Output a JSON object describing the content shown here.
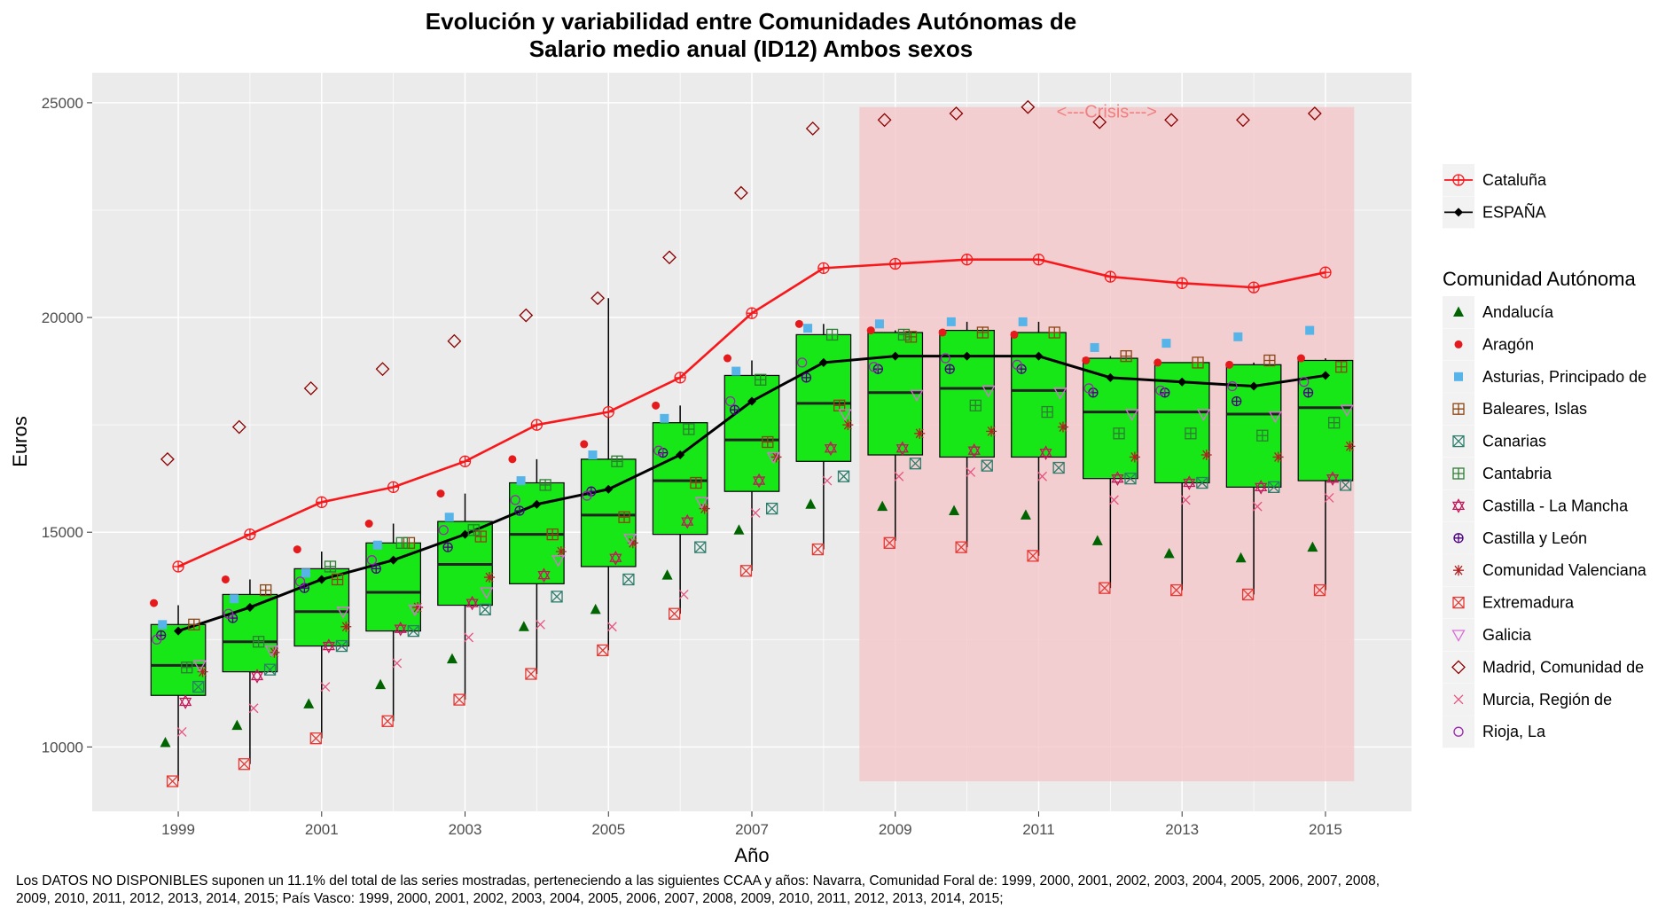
{
  "chart_data": {
    "type": "boxplot",
    "title_line1": "Evolución y variabilidad entre Comunidades Autónomas de",
    "title_line2": "Salario medio anual (ID12) Ambos sexos",
    "xlabel": "Año",
    "ylabel": "Euros",
    "xlim": [
      1997.8,
      2016.2
    ],
    "ylim": [
      8500,
      25700
    ],
    "x_ticks": [
      1999,
      2001,
      2003,
      2005,
      2007,
      2009,
      2011,
      2013,
      2015
    ],
    "x_tick_labels": [
      "1999",
      "2001",
      "2003",
      "2005",
      "2007",
      "2009",
      "2011",
      "2013",
      "2015"
    ],
    "y_ticks": [
      10000,
      15000,
      20000,
      25000
    ],
    "y_tick_labels": [
      "10000",
      "15000",
      "20000",
      "25000"
    ],
    "grid": true,
    "crisis_band": {
      "label": "<---Crisis--->",
      "x_from": 2008.5,
      "x_to": 2015.4,
      "y_from": 9200,
      "y_to": 24900,
      "color": "#f4c7c9"
    },
    "box_color": "#17e617",
    "years": [
      1999,
      2000,
      2001,
      2002,
      2003,
      2004,
      2005,
      2006,
      2007,
      2008,
      2009,
      2010,
      2011,
      2012,
      2013,
      2014,
      2015
    ],
    "boxes": [
      {
        "year": 1999,
        "min": 9200,
        "q1": 11200,
        "median": 11900,
        "q3": 12850,
        "max": 13300
      },
      {
        "year": 2000,
        "min": 9600,
        "q1": 11750,
        "median": 12450,
        "q3": 13550,
        "max": 13900
      },
      {
        "year": 2001,
        "min": 10200,
        "q1": 12350,
        "median": 13150,
        "q3": 14150,
        "max": 14550
      },
      {
        "year": 2002,
        "min": 10600,
        "q1": 12700,
        "median": 13600,
        "q3": 14750,
        "max": 15200
      },
      {
        "year": 2003,
        "min": 11100,
        "q1": 13300,
        "median": 14250,
        "q3": 15250,
        "max": 15900
      },
      {
        "year": 2004,
        "min": 11700,
        "q1": 13800,
        "median": 14950,
        "q3": 16150,
        "max": 16700
      },
      {
        "year": 2005,
        "min": 12250,
        "q1": 14200,
        "median": 15400,
        "q3": 16700,
        "max": 20450
      },
      {
        "year": 2006,
        "min": 13100,
        "q1": 14950,
        "median": 16200,
        "q3": 17550,
        "max": 17950
      },
      {
        "year": 2007,
        "min": 14100,
        "q1": 15950,
        "median": 17150,
        "q3": 18650,
        "max": 19000
      },
      {
        "year": 2008,
        "min": 14600,
        "q1": 16650,
        "median": 18000,
        "q3": 19600,
        "max": 19850
      },
      {
        "year": 2009,
        "min": 14800,
        "q1": 16800,
        "median": 18250,
        "q3": 19650,
        "max": 19700
      },
      {
        "year": 2010,
        "min": 14650,
        "q1": 16750,
        "median": 18350,
        "q3": 19700,
        "max": 19900
      },
      {
        "year": 2011,
        "min": 14450,
        "q1": 16750,
        "median": 18300,
        "q3": 19650,
        "max": 19900
      },
      {
        "year": 2012,
        "min": 13700,
        "q1": 16250,
        "median": 17800,
        "q3": 19050,
        "max": 19100
      },
      {
        "year": 2013,
        "min": 13650,
        "q1": 16150,
        "median": 17800,
        "q3": 18950,
        "max": 18950
      },
      {
        "year": 2014,
        "min": 13550,
        "q1": 16050,
        "median": 17750,
        "q3": 18900,
        "max": 18950
      },
      {
        "year": 2015,
        "min": 13650,
        "q1": 16200,
        "median": 17900,
        "q3": 19000,
        "max": 19050
      }
    ],
    "series": [
      {
        "name": "Cataluña",
        "color": "#f8171b",
        "shape": "circle-cross",
        "line": true,
        "values": [
          14200,
          14950,
          15700,
          16050,
          16650,
          17500,
          17800,
          18600,
          20100,
          21150,
          21250,
          21350,
          21350,
          20950,
          20800,
          20700,
          21050
        ]
      },
      {
        "name": "ESPAÑA",
        "color": "#000000",
        "shape": "diamond-filled",
        "line": true,
        "values": [
          12700,
          13250,
          13900,
          14350,
          14950,
          15650,
          16000,
          16800,
          18050,
          18950,
          19100,
          19100,
          19100,
          18600,
          18500,
          18400,
          18650
        ]
      },
      {
        "name": "Andalucía",
        "color": "#006400",
        "shape": "triangle-filled",
        "values": [
          10100,
          10500,
          11000,
          11450,
          12050,
          12800,
          13200,
          14000,
          15050,
          15650,
          15600,
          15500,
          15400,
          14800,
          14500,
          14400,
          14650
        ]
      },
      {
        "name": "Aragón",
        "color": "#e41a1c",
        "shape": "circle-filled",
        "values": [
          13350,
          13900,
          14600,
          15200,
          15900,
          16700,
          17050,
          17950,
          19050,
          19850,
          19700,
          19650,
          19600,
          19000,
          18950,
          18900,
          19050
        ]
      },
      {
        "name": "Asturias, Principado de",
        "color": "#56b4e9",
        "shape": "square-filled",
        "values": [
          12850,
          13450,
          14050,
          14700,
          15350,
          16200,
          16800,
          17650,
          18750,
          19750,
          19850,
          19900,
          19900,
          19300,
          19400,
          19550,
          19700
        ]
      },
      {
        "name": "Baleares, Islas",
        "color": "#8b4513",
        "shape": "square-plus",
        "values": [
          12850,
          13650,
          13900,
          14750,
          14900,
          14950,
          15350,
          16150,
          17100,
          17950,
          19550,
          19650,
          19650,
          19100,
          18950,
          19000,
          18850
        ]
      },
      {
        "name": "Canarias",
        "color": "#2e7d6b",
        "shape": "square-x",
        "values": [
          11400,
          11800,
          12350,
          12700,
          13200,
          13500,
          13900,
          14650,
          15550,
          16300,
          16600,
          16550,
          16500,
          16250,
          16150,
          16050,
          16100
        ]
      },
      {
        "name": "Cantabria",
        "color": "#2e7d32",
        "shape": "square-plus",
        "values": [
          11850,
          12450,
          14200,
          14750,
          15050,
          16100,
          16650,
          17400,
          18550,
          19600,
          19600,
          17950,
          17800,
          17300,
          17300,
          17250,
          17550
        ]
      },
      {
        "name": "Castilla - La Mancha",
        "color": "#c2185b",
        "shape": "star-david",
        "values": [
          11050,
          11650,
          12350,
          12750,
          13350,
          14000,
          14400,
          15250,
          16200,
          16950,
          16950,
          16900,
          16850,
          16250,
          16150,
          16050,
          16250
        ]
      },
      {
        "name": "Castilla y León",
        "color": "#4b0082",
        "shape": "circle-plus",
        "values": [
          12600,
          13000,
          13700,
          14150,
          14650,
          15500,
          15950,
          16850,
          17850,
          18600,
          18800,
          18800,
          18800,
          18250,
          18250,
          18050,
          18250
        ]
      },
      {
        "name": "Comunidad Valenciana",
        "color": "#b22222",
        "shape": "asterisk",
        "values": [
          11750,
          12200,
          12800,
          13250,
          13950,
          14550,
          14750,
          15550,
          16750,
          17500,
          17300,
          17350,
          17450,
          16750,
          16800,
          16750,
          17000
        ]
      },
      {
        "name": "Extremadura",
        "color": "#e53935",
        "shape": "square-x",
        "values": [
          9200,
          9600,
          10200,
          10600,
          11100,
          11700,
          12250,
          13100,
          14100,
          14600,
          14750,
          14650,
          14450,
          13700,
          13650,
          13550,
          13650
        ]
      },
      {
        "name": "Galicia",
        "color": "#da70d6",
        "shape": "triangle-down",
        "values": [
          11900,
          12250,
          13150,
          13200,
          13600,
          14350,
          14850,
          15700,
          16750,
          17750,
          18200,
          18300,
          18250,
          17750,
          17750,
          17700,
          17850
        ]
      },
      {
        "name": "Madrid, Comunidad de",
        "color": "#8b0000",
        "shape": "diamond-open",
        "values": [
          16700,
          17450,
          18350,
          18800,
          19450,
          20050,
          20450,
          21400,
          22900,
          24400,
          24600,
          24750,
          24900,
          24550,
          24600,
          24600,
          24750
        ]
      },
      {
        "name": "Murcia, Región de",
        "color": "#e75480",
        "shape": "x",
        "values": [
          10350,
          10900,
          11400,
          11950,
          12550,
          12850,
          12800,
          13550,
          15450,
          16200,
          16300,
          16400,
          16300,
          15750,
          15750,
          15600,
          15800
        ]
      },
      {
        "name": "Rioja, La",
        "color": "#9c27b0",
        "shape": "circle-open",
        "values": [
          12500,
          13100,
          13850,
          14350,
          15050,
          15750,
          15850,
          16900,
          18050,
          18950,
          18850,
          19050,
          18900,
          18350,
          18300,
          18400,
          18500
        ]
      }
    ],
    "legend": {
      "highlight_entries": [
        "Cataluña",
        "ESPAÑA"
      ],
      "title": "Comunidad Autónoma",
      "entries": [
        "Andalucía",
        "Aragón",
        "Asturias, Principado de",
        "Baleares, Islas",
        "Canarias",
        "Cantabria",
        "Castilla - La Mancha",
        "Castilla y León",
        "Comunidad Valenciana",
        "Extremadura",
        "Galicia",
        "Madrid, Comunidad de",
        "Murcia, Región de",
        "Rioja, La"
      ],
      "position": "right"
    }
  },
  "caption": "Los DATOS NO DISPONIBLES suponen un 11.1% del total de las series mostradas, perteneciendo a las siguientes CCAA y años: Navarra, Comunidad Foral de: 1999, 2000, 2001, 2002, 2003, 2004, 2005, 2006, 2007, 2008, 2009, 2010, 2011, 2012, 2013, 2014, 2015; País Vasco: 1999, 2000, 2001, 2002, 2003, 2004, 2005, 2006, 2007, 2008, 2009, 2010, 2011, 2012, 2013, 2014, 2015;"
}
